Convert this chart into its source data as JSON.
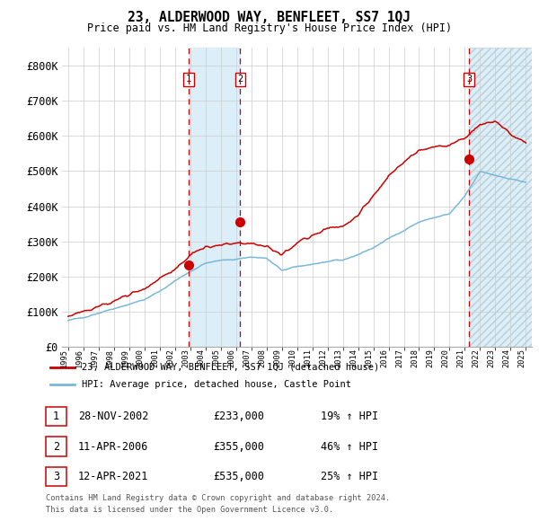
{
  "title": "23, ALDERWOOD WAY, BENFLEET, SS7 1QJ",
  "subtitle": "Price paid vs. HM Land Registry's House Price Index (HPI)",
  "legend_line1": "23, ALDERWOOD WAY, BENFLEET, SS7 1QJ (detached house)",
  "legend_line2": "HPI: Average price, detached house, Castle Point",
  "transactions": [
    {
      "label": "1",
      "date": "28-NOV-2002",
      "price": 233000,
      "pct": "19%",
      "dir": "↑",
      "x_year": 2002.91
    },
    {
      "label": "2",
      "date": "11-APR-2006",
      "price": 355000,
      "pct": "46%",
      "dir": "↑",
      "x_year": 2006.28
    },
    {
      "label": "3",
      "date": "12-APR-2021",
      "price": 535000,
      "pct": "25%",
      "dir": "↑",
      "x_year": 2021.28
    }
  ],
  "dot_prices": [
    233000,
    355000,
    535000
  ],
  "ylim": [
    0,
    850000
  ],
  "yticks": [
    0,
    100000,
    200000,
    300000,
    400000,
    500000,
    600000,
    700000,
    800000
  ],
  "ytick_labels": [
    "£0",
    "£100K",
    "£200K",
    "£300K",
    "£400K",
    "£500K",
    "£600K",
    "£700K",
    "£800K"
  ],
  "hpi_color": "#7ab8d9",
  "price_color": "#cc0000",
  "dot_color": "#cc0000",
  "vline_color": "#cc0000",
  "shade_color": "#dceef7",
  "grid_color": "#cccccc",
  "bg_color": "#ffffff",
  "table_rows": [
    [
      "1",
      "28-NOV-2002",
      "£233,000",
      "19% ↑ HPI"
    ],
    [
      "2",
      "11-APR-2006",
      "£355,000",
      "46% ↑ HPI"
    ],
    [
      "3",
      "12-APR-2021",
      "£535,000",
      "25% ↑ HPI"
    ]
  ],
  "footnote1": "Contains HM Land Registry data © Crown copyright and database right 2024.",
  "footnote2": "This data is licensed under the Open Government Licence v3.0.",
  "xmin": 1994.6,
  "xmax": 2025.4
}
